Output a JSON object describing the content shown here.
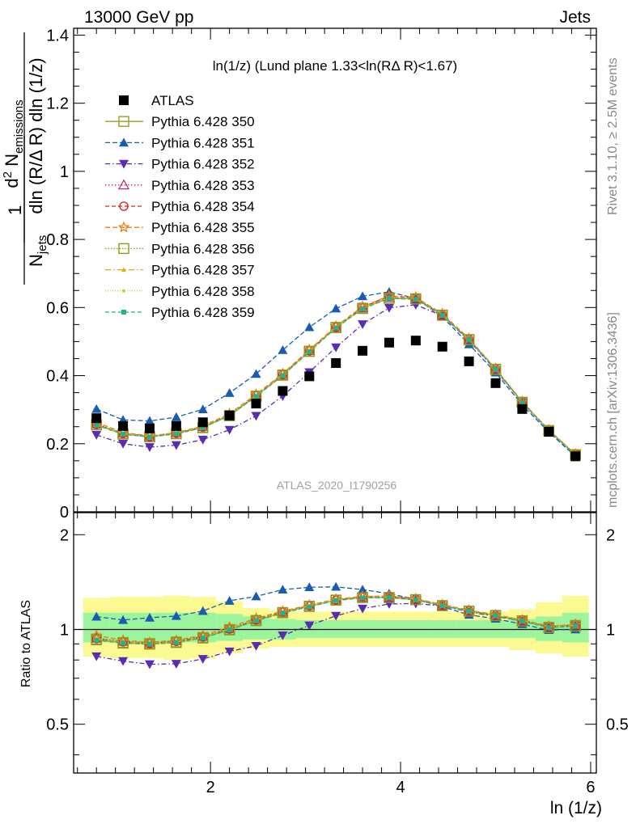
{
  "header": {
    "left": "13000 GeV pp",
    "right": "Jets"
  },
  "side_labels": {
    "rivet": "Rivet 3.1.10, ≥ 2.5M events",
    "mcplots": "mcplots.cern.ch [arXiv:1306.3436]"
  },
  "watermark": "ATLAS_2020_I1790256",
  "chart_data": [
    {
      "type": "scatter",
      "panel": "main",
      "title": "ln(1/z) (Lund plane 1.33<ln(RΔ R)<1.67)",
      "ylabel": "1/N_jets d²N_emissions / dln(R/ΔR) dln(1/z)",
      "ylabel_parts": {
        "frac_num": "1",
        "frac_den": "N",
        "frac_den_sub": "jets",
        "d_sup": "2",
        "num_n": "N",
        "num_sub": "emissions",
        "den_text": "dln (R/Δ R) dln (1/z)"
      },
      "xlim": [
        0.56,
        6.06
      ],
      "ylim": [
        0,
        1.42
      ],
      "yticks": [
        0,
        0.2,
        0.4,
        0.6,
        0.8,
        1,
        1.2,
        1.4
      ],
      "ytick_labels": [
        "0",
        "0.2",
        "0.4",
        "0.6",
        "0.8",
        "1",
        "1.2",
        "1.4"
      ],
      "x": [
        0.8,
        1.08,
        1.36,
        1.64,
        1.92,
        2.2,
        2.48,
        2.76,
        3.04,
        3.32,
        3.6,
        3.88,
        4.16,
        4.44,
        4.72,
        5.0,
        5.28,
        5.56,
        5.84
      ],
      "x_edges": [
        0.66,
        0.94,
        1.22,
        1.5,
        1.78,
        2.06,
        2.34,
        2.62,
        2.9,
        3.18,
        3.46,
        3.74,
        4.02,
        4.3,
        4.58,
        4.86,
        5.14,
        5.42,
        5.7,
        5.98
      ],
      "series": [
        {
          "name": "ATLAS",
          "color": "#000000",
          "dash": "",
          "marker": "fsquare",
          "values": [
            0.275,
            0.252,
            0.245,
            0.252,
            0.263,
            0.283,
            0.318,
            0.355,
            0.398,
            0.437,
            0.473,
            0.497,
            0.503,
            0.485,
            0.442,
            0.378,
            0.302,
            0.235,
            0.163
          ]
        },
        {
          "name": "Pythia 6.428 350",
          "color": "#9a9a2a",
          "dash": "",
          "marker": "osquare",
          "values": [
            0.256,
            0.229,
            0.221,
            0.23,
            0.248,
            0.283,
            0.34,
            0.402,
            0.472,
            0.542,
            0.598,
            0.628,
            0.626,
            0.578,
            0.506,
            0.419,
            0.322,
            0.239,
            0.168
          ]
        },
        {
          "name": "Pythia 6.428 351",
          "color": "#1a5cb0",
          "dash": "6,3",
          "marker": "ftri",
          "values": [
            0.302,
            0.27,
            0.267,
            0.278,
            0.301,
            0.349,
            0.405,
            0.475,
            0.542,
            0.597,
            0.633,
            0.646,
            0.627,
            0.573,
            0.492,
            0.409,
            0.314,
            0.234,
            0.163
          ]
        },
        {
          "name": "Pythia 6.428 352",
          "color": "#5b2bb0",
          "dash": "6,3,1.5,3",
          "marker": "fitri",
          "values": [
            0.226,
            0.2,
            0.19,
            0.196,
            0.212,
            0.241,
            0.282,
            0.34,
            0.41,
            0.483,
            0.551,
            0.599,
            0.608,
            0.576,
            0.503,
            0.416,
            0.321,
            0.24,
            0.168
          ]
        },
        {
          "name": "Pythia 6.428 353",
          "color": "#c0307a",
          "dash": "1.5,2.5",
          "marker": "otri",
          "values": [
            0.258,
            0.231,
            0.222,
            0.232,
            0.25,
            0.285,
            0.342,
            0.403,
            0.474,
            0.543,
            0.599,
            0.63,
            0.627,
            0.579,
            0.507,
            0.42,
            0.323,
            0.24,
            0.169
          ]
        },
        {
          "name": "Pythia 6.428 354",
          "color": "#dd1c1c",
          "dash": "5,3",
          "marker": "ocircle",
          "values": [
            0.257,
            0.23,
            0.221,
            0.231,
            0.249,
            0.284,
            0.341,
            0.403,
            0.473,
            0.542,
            0.601,
            0.634,
            0.628,
            0.578,
            0.506,
            0.419,
            0.322,
            0.239,
            0.168
          ]
        },
        {
          "name": "Pythia 6.428 355",
          "color": "#f07c1c",
          "dash": "6,3",
          "marker": "ostar",
          "values": [
            0.263,
            0.233,
            0.223,
            0.233,
            0.252,
            0.288,
            0.345,
            0.406,
            0.476,
            0.545,
            0.603,
            0.634,
            0.63,
            0.582,
            0.509,
            0.421,
            0.324,
            0.241,
            0.169
          ]
        },
        {
          "name": "Pythia 6.428 356",
          "color": "#8a9a1a",
          "dash": "1.5,2",
          "marker": "osquare",
          "values": [
            0.255,
            0.228,
            0.22,
            0.229,
            0.247,
            0.282,
            0.339,
            0.401,
            0.471,
            0.541,
            0.597,
            0.627,
            0.625,
            0.577,
            0.505,
            0.418,
            0.321,
            0.238,
            0.167
          ]
        },
        {
          "name": "Pythia 6.428 357",
          "color": "#d4b400",
          "dash": "7,3,1.5,3",
          "marker": "fsmall",
          "values": [
            0.257,
            0.23,
            0.221,
            0.23,
            0.249,
            0.284,
            0.341,
            0.402,
            0.472,
            0.542,
            0.598,
            0.629,
            0.626,
            0.578,
            0.506,
            0.419,
            0.322,
            0.239,
            0.168
          ]
        },
        {
          "name": "Pythia 6.428 358",
          "color": "#b8d42a",
          "dash": "1,2",
          "marker": "fdot",
          "values": [
            0.256,
            0.229,
            0.221,
            0.23,
            0.248,
            0.283,
            0.34,
            0.402,
            0.472,
            0.542,
            0.598,
            0.628,
            0.626,
            0.578,
            0.506,
            0.419,
            0.322,
            0.239,
            0.168
          ]
        },
        {
          "name": "Pythia 6.428 359",
          "color": "#20b48a",
          "dash": "5,3",
          "marker": "fsmallsq",
          "values": [
            0.254,
            0.228,
            0.22,
            0.229,
            0.247,
            0.282,
            0.339,
            0.4,
            0.47,
            0.54,
            0.596,
            0.627,
            0.624,
            0.577,
            0.505,
            0.418,
            0.321,
            0.238,
            0.167
          ]
        }
      ]
    },
    {
      "type": "scatter",
      "panel": "ratio",
      "ylabel": "Ratio to ATLAS",
      "xlabel": "ln (1/z)",
      "xlim": [
        0.56,
        6.06
      ],
      "ylim": [
        0.35,
        2.35
      ],
      "log_y": true,
      "xticks": [
        2,
        4,
        6
      ],
      "xtick_labels": [
        "2",
        "4",
        "6"
      ],
      "yticks": [
        0.5,
        1,
        2
      ],
      "ytick_labels": [
        "0.5",
        "1",
        "2"
      ],
      "reference_line": 1,
      "bands": {
        "stat_lo": [
          0.91,
          0.91,
          0.91,
          0.91,
          0.91,
          0.92,
          0.93,
          0.93,
          0.94,
          0.94,
          0.94,
          0.94,
          0.94,
          0.94,
          0.94,
          0.94,
          0.94,
          0.92,
          0.91
        ],
        "stat_hi": [
          1.13,
          1.13,
          1.13,
          1.13,
          1.13,
          1.12,
          1.1,
          1.08,
          1.07,
          1.07,
          1.07,
          1.07,
          1.07,
          1.07,
          1.07,
          1.07,
          1.08,
          1.1,
          1.13
        ],
        "total_lo": [
          0.82,
          0.81,
          0.81,
          0.8,
          0.81,
          0.84,
          0.87,
          0.88,
          0.88,
          0.88,
          0.88,
          0.88,
          0.88,
          0.88,
          0.88,
          0.88,
          0.86,
          0.84,
          0.82
        ],
        "total_hi": [
          1.26,
          1.27,
          1.27,
          1.28,
          1.27,
          1.23,
          1.17,
          1.15,
          1.14,
          1.14,
          1.14,
          1.14,
          1.14,
          1.14,
          1.14,
          1.14,
          1.16,
          1.22,
          1.28
        ],
        "stat_color": "#9cf59c",
        "total_color": "#fbfa92"
      }
    }
  ]
}
